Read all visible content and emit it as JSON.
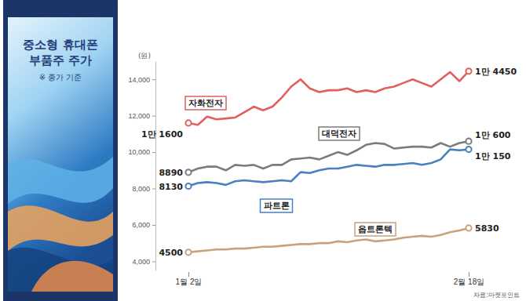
{
  "chart_data": {
    "type": "line",
    "title": "중소형 휴대폰 부품주 주가",
    "subtitle": "※ 종가 기준",
    "y_label": "(원)",
    "source": "자료:마켓포인트",
    "categories": [
      "1월 2일",
      null,
      null,
      null,
      null,
      null,
      null,
      null,
      null,
      null,
      null,
      null,
      null,
      null,
      null,
      null,
      null,
      null,
      null,
      null,
      null,
      null,
      null,
      null,
      null,
      null,
      null,
      null,
      null,
      null,
      "2월 18일"
    ],
    "ylim": [
      3500,
      15000
    ],
    "yticks": [
      {
        "value": 4000,
        "label": "4,000"
      },
      {
        "value": 6000,
        "label": "6,000"
      },
      {
        "value": 8000,
        "label": "8,000"
      },
      {
        "value": 10000,
        "label": "10,000"
      },
      {
        "value": 12000,
        "label": "12,000"
      },
      {
        "value": 14000,
        "label": "14,000"
      }
    ],
    "grid": false,
    "series": [
      {
        "name": "자화전자",
        "color": "#e0605e",
        "marker": "circle",
        "values": [
          11600,
          11500,
          11950,
          11800,
          11850,
          11900,
          12200,
          12500,
          12300,
          12500,
          13000,
          13600,
          14000,
          13500,
          13300,
          13400,
          13400,
          13500,
          13300,
          13400,
          13300,
          13500,
          13600,
          13800,
          14000,
          13800,
          13600,
          14000,
          14400,
          13900,
          14450
        ],
        "value_labels": [
          "1만 1600",
          null,
          null,
          null,
          null,
          null,
          null,
          null,
          null,
          null,
          null,
          null,
          null,
          null,
          null,
          null,
          null,
          null,
          null,
          null,
          null,
          null,
          null,
          null,
          null,
          null,
          null,
          null,
          null,
          null,
          "1만 4450"
        ]
      },
      {
        "name": "대덕전자",
        "color": "#7b7b7b",
        "marker": "circle",
        "values": [
          8890,
          9100,
          9200,
          9200,
          9000,
          9300,
          9250,
          9300,
          9100,
          9300,
          9300,
          9600,
          9650,
          9700,
          9600,
          9800,
          10000,
          9850,
          10100,
          10400,
          10500,
          10450,
          10200,
          10250,
          10300,
          10300,
          10250,
          10500,
          10300,
          10500,
          10600
        ],
        "value_labels": [
          "8890",
          null,
          null,
          null,
          null,
          null,
          null,
          null,
          null,
          null,
          null,
          null,
          null,
          null,
          null,
          null,
          null,
          null,
          null,
          null,
          null,
          null,
          null,
          null,
          null,
          null,
          null,
          null,
          null,
          null,
          "1만 600"
        ]
      },
      {
        "name": "파트론",
        "color": "#4a7fc1",
        "marker": "circle",
        "values": [
          8130,
          8300,
          8350,
          8300,
          8200,
          8400,
          8450,
          8400,
          8350,
          8400,
          8450,
          8400,
          8900,
          8850,
          9000,
          9100,
          9100,
          9200,
          9300,
          9250,
          9200,
          9300,
          9300,
          9350,
          9400,
          9300,
          9400,
          9600,
          10150,
          10100,
          10150
        ],
        "value_labels": [
          "8130",
          null,
          null,
          null,
          null,
          null,
          null,
          null,
          null,
          null,
          null,
          null,
          null,
          null,
          null,
          null,
          null,
          null,
          null,
          null,
          null,
          null,
          null,
          null,
          null,
          null,
          null,
          null,
          null,
          null,
          "1만 150"
        ]
      },
      {
        "name": "옵트론텍",
        "color": "#c9a27c",
        "marker": "circle",
        "values": [
          4500,
          4550,
          4600,
          4650,
          4650,
          4700,
          4700,
          4750,
          4800,
          4800,
          4850,
          4900,
          4950,
          4950,
          5000,
          5000,
          5100,
          5050,
          5150,
          5200,
          5100,
          5150,
          5200,
          5300,
          5350,
          5400,
          5350,
          5450,
          5600,
          5700,
          5830
        ],
        "value_labels": [
          "4500",
          null,
          null,
          null,
          null,
          null,
          null,
          null,
          null,
          null,
          null,
          null,
          null,
          null,
          null,
          null,
          null,
          null,
          null,
          null,
          null,
          null,
          null,
          null,
          null,
          null,
          null,
          null,
          null,
          null,
          "5830"
        ]
      }
    ]
  }
}
